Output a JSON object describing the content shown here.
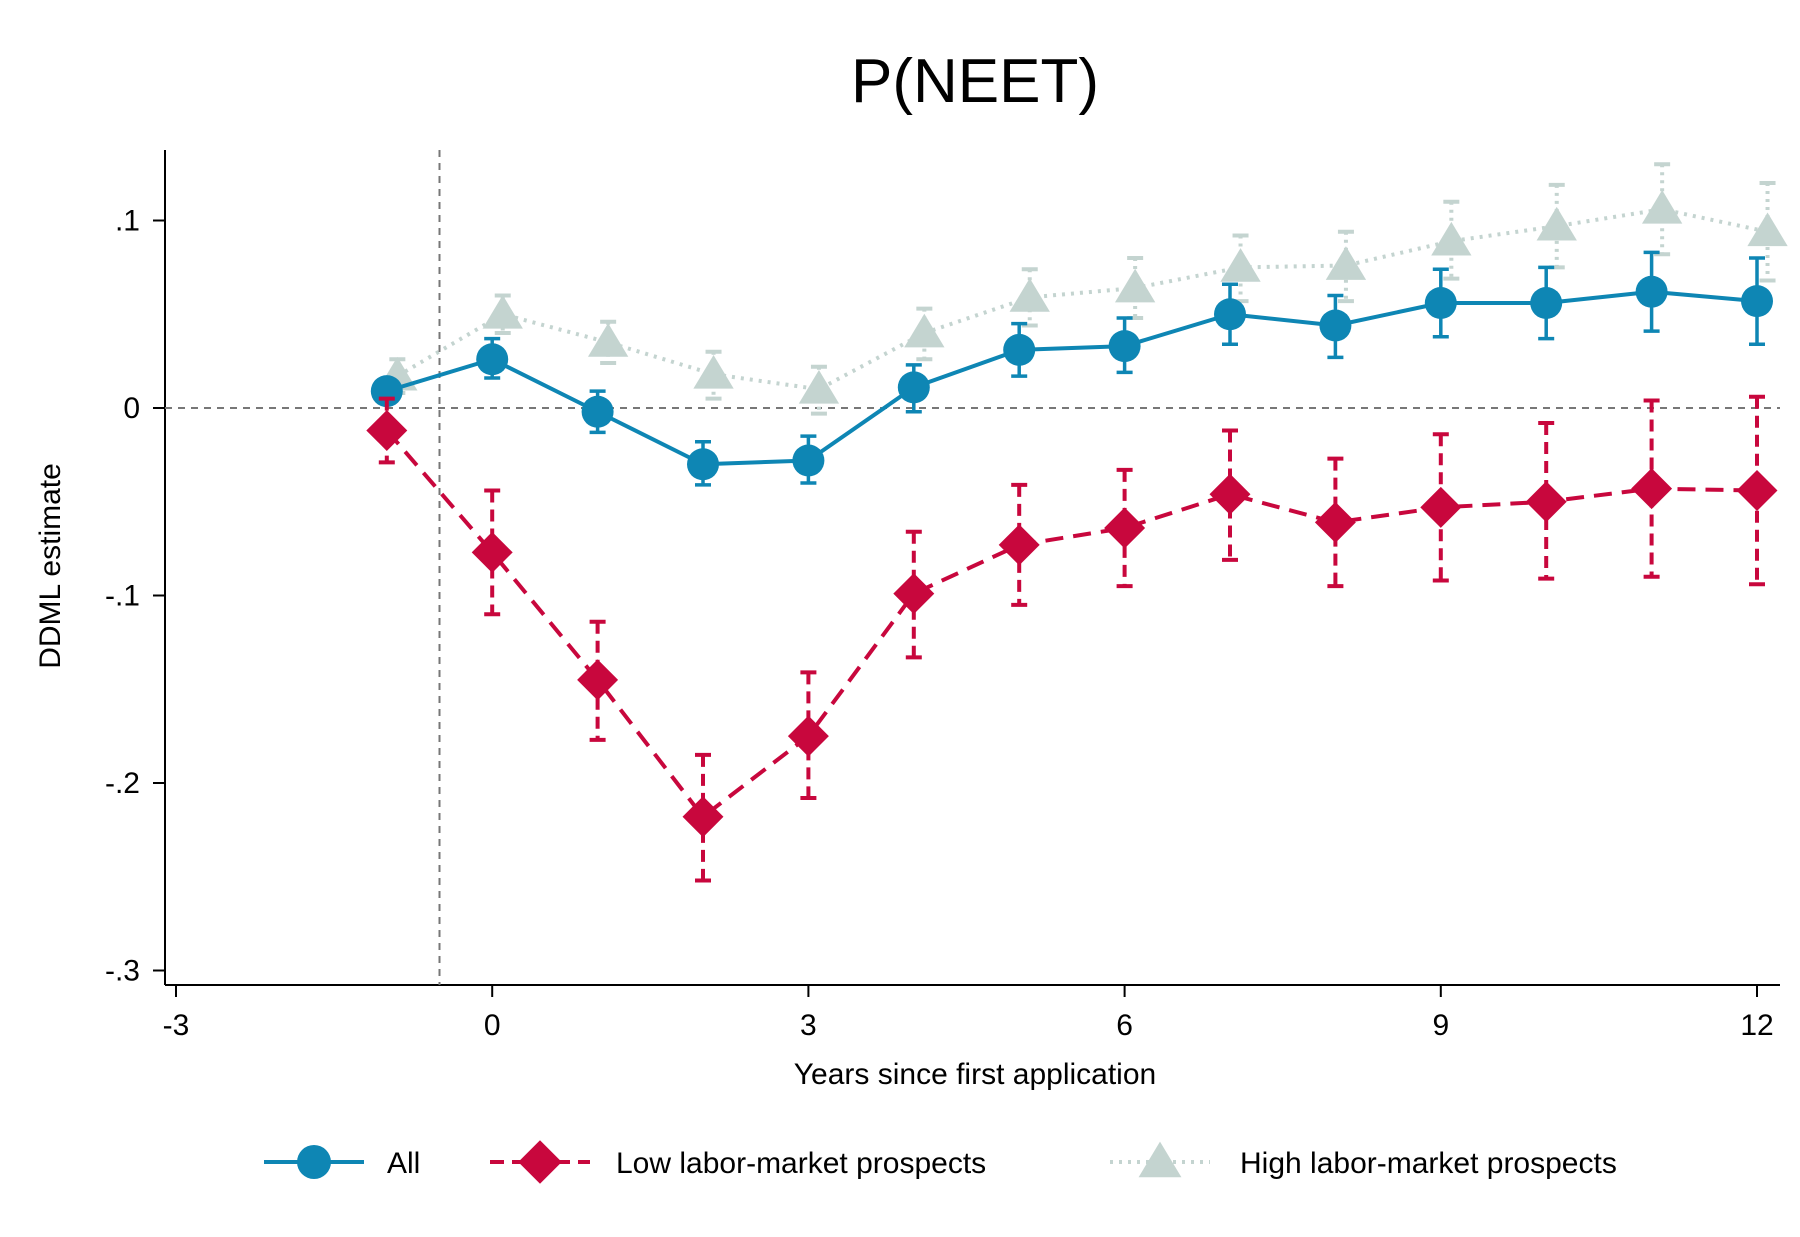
{
  "chart_data": {
    "type": "line",
    "title": "P(NEET)",
    "xlabel": "Years since first application",
    "ylabel": "DDML estimate",
    "xlim": [
      -3,
      12
    ],
    "ylim": [
      -0.3,
      0.13
    ],
    "x_ticks": [
      -3,
      0,
      3,
      6,
      9,
      12
    ],
    "x_tick_labels": [
      "-3",
      "0",
      "3",
      "6",
      "9",
      "12"
    ],
    "y_ticks": [
      -0.3,
      -0.2,
      -0.1,
      0,
      0.1
    ],
    "y_tick_labels": [
      "-.3",
      "-.2",
      "-.1",
      "0",
      ".1"
    ],
    "reference_lines": {
      "y_zero": 0,
      "x_treatment": -0.5
    },
    "legend_position": "bottom",
    "series": [
      {
        "name": "All",
        "color": "#0e86b4",
        "marker": "circle",
        "line_style": "solid",
        "points": [
          {
            "x": -1,
            "y": 0.009,
            "lo": null,
            "hi": null
          },
          {
            "x": 0,
            "y": 0.026,
            "lo": 0.016,
            "hi": 0.037
          },
          {
            "x": 1,
            "y": -0.002,
            "lo": -0.013,
            "hi": 0.009
          },
          {
            "x": 2,
            "y": -0.03,
            "lo": -0.041,
            "hi": -0.018
          },
          {
            "x": 3,
            "y": -0.028,
            "lo": -0.04,
            "hi": -0.015
          },
          {
            "x": 4,
            "y": 0.011,
            "lo": -0.002,
            "hi": 0.023
          },
          {
            "x": 5,
            "y": 0.031,
            "lo": 0.017,
            "hi": 0.045
          },
          {
            "x": 6,
            "y": 0.033,
            "lo": 0.019,
            "hi": 0.048
          },
          {
            "x": 7,
            "y": 0.05,
            "lo": 0.034,
            "hi": 0.066
          },
          {
            "x": 8,
            "y": 0.044,
            "lo": 0.027,
            "hi": 0.06
          },
          {
            "x": 9,
            "y": 0.056,
            "lo": 0.038,
            "hi": 0.074
          },
          {
            "x": 10,
            "y": 0.056,
            "lo": 0.037,
            "hi": 0.075
          },
          {
            "x": 11,
            "y": 0.062,
            "lo": 0.041,
            "hi": 0.083
          },
          {
            "x": 12,
            "y": 0.057,
            "lo": 0.034,
            "hi": 0.08
          }
        ]
      },
      {
        "name": "Low labor-market prospects",
        "color": "#c8073d",
        "marker": "diamond",
        "line_style": "dashed",
        "points": [
          {
            "x": -1,
            "y": -0.012,
            "lo": -0.029,
            "hi": 0.005
          },
          {
            "x": 0,
            "y": -0.077,
            "lo": -0.11,
            "hi": -0.044
          },
          {
            "x": 1,
            "y": -0.145,
            "lo": -0.177,
            "hi": -0.114
          },
          {
            "x": 2,
            "y": -0.218,
            "lo": -0.252,
            "hi": -0.185
          },
          {
            "x": 3,
            "y": -0.175,
            "lo": -0.208,
            "hi": -0.141
          },
          {
            "x": 4,
            "y": -0.099,
            "lo": -0.133,
            "hi": -0.066
          },
          {
            "x": 5,
            "y": -0.073,
            "lo": -0.105,
            "hi": -0.041
          },
          {
            "x": 6,
            "y": -0.064,
            "lo": -0.095,
            "hi": -0.033
          },
          {
            "x": 7,
            "y": -0.046,
            "lo": -0.081,
            "hi": -0.012
          },
          {
            "x": 8,
            "y": -0.061,
            "lo": -0.095,
            "hi": -0.027
          },
          {
            "x": 9,
            "y": -0.053,
            "lo": -0.092,
            "hi": -0.014
          },
          {
            "x": 10,
            "y": -0.05,
            "lo": -0.091,
            "hi": -0.008
          },
          {
            "x": 11,
            "y": -0.043,
            "lo": -0.09,
            "hi": 0.004
          },
          {
            "x": 12,
            "y": -0.044,
            "lo": -0.094,
            "hi": 0.006
          }
        ]
      },
      {
        "name": "High labor-market prospects",
        "color": "#c4d4d0",
        "marker": "triangle",
        "line_style": "dotted",
        "points": [
          {
            "x": -0.9,
            "y": 0.017,
            "lo": 0.008,
            "hi": 0.026
          },
          {
            "x": 0.1,
            "y": 0.05,
            "lo": 0.04,
            "hi": 0.06
          },
          {
            "x": 1.1,
            "y": 0.035,
            "lo": 0.024,
            "hi": 0.046
          },
          {
            "x": 2.1,
            "y": 0.018,
            "lo": 0.005,
            "hi": 0.03
          },
          {
            "x": 3.1,
            "y": 0.01,
            "lo": -0.003,
            "hi": 0.022
          },
          {
            "x": 4.1,
            "y": 0.04,
            "lo": 0.026,
            "hi": 0.053
          },
          {
            "x": 5.1,
            "y": 0.059,
            "lo": 0.044,
            "hi": 0.074
          },
          {
            "x": 6.1,
            "y": 0.064,
            "lo": 0.048,
            "hi": 0.08
          },
          {
            "x": 7.1,
            "y": 0.075,
            "lo": 0.057,
            "hi": 0.092
          },
          {
            "x": 8.1,
            "y": 0.076,
            "lo": 0.057,
            "hi": 0.094
          },
          {
            "x": 9.1,
            "y": 0.089,
            "lo": 0.069,
            "hi": 0.11
          },
          {
            "x": 10.1,
            "y": 0.097,
            "lo": 0.075,
            "hi": 0.119
          },
          {
            "x": 11.1,
            "y": 0.106,
            "lo": 0.082,
            "hi": 0.13
          },
          {
            "x": 12.1,
            "y": 0.094,
            "lo": 0.068,
            "hi": 0.12
          }
        ]
      }
    ]
  }
}
